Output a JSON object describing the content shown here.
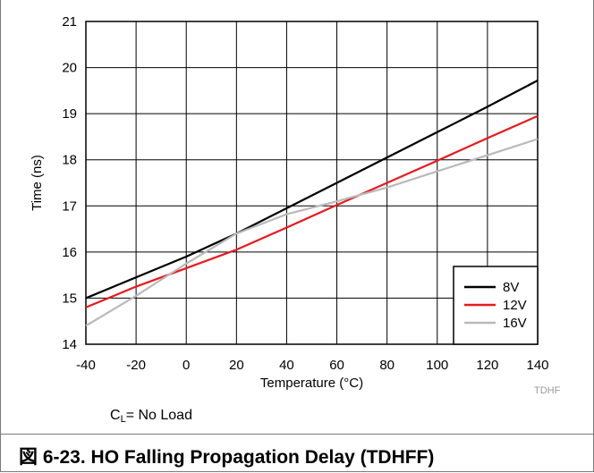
{
  "chart_data": {
    "type": "line",
    "title": "",
    "xlabel": "Temperature (°C)",
    "ylabel": "Time (ns)",
    "xlim": [
      -40,
      140
    ],
    "ylim": [
      14,
      21
    ],
    "xticks": [
      -40,
      -20,
      0,
      20,
      40,
      60,
      80,
      100,
      120,
      140
    ],
    "yticks": [
      14,
      15,
      16,
      17,
      18,
      19,
      20,
      21
    ],
    "grid": true,
    "legend_position": "bottom-right",
    "series": [
      {
        "name": "8V",
        "color": "#000000",
        "x": [
          -40,
          0,
          20,
          40,
          60,
          80,
          100,
          120,
          140
        ],
        "y": [
          15.0,
          15.9,
          16.4,
          16.95,
          17.5,
          18.05,
          18.6,
          19.15,
          19.72
        ]
      },
      {
        "name": "12V",
        "color": "#e8191d",
        "x": [
          -40,
          -20,
          0,
          20,
          40,
          60,
          80,
          100,
          120,
          140
        ],
        "y": [
          14.8,
          15.25,
          15.65,
          16.05,
          16.53,
          17.02,
          17.5,
          17.98,
          18.47,
          18.95
        ]
      },
      {
        "name": "16V",
        "color": "#b9b9b9",
        "x": [
          -40,
          -20,
          0,
          20,
          40,
          60,
          80,
          100,
          120,
          140
        ],
        "y": [
          14.4,
          15.05,
          15.75,
          16.4,
          16.82,
          17.1,
          17.4,
          17.75,
          18.1,
          18.45
        ]
      }
    ]
  },
  "watermark": "TDHF",
  "note": {
    "prefix": "C",
    "subscript": "L",
    "suffix": "= No Load"
  },
  "caption": "図 6-23. HO Falling Propagation Delay (TDHFF)"
}
